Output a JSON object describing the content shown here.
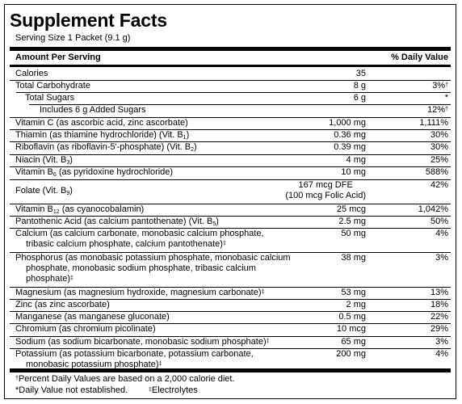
{
  "title": "Supplement Facts",
  "serving_size": "Serving Size 1 Packet (9.1 g)",
  "header": {
    "amount": "Amount Per Serving",
    "dv": "% Daily Value"
  },
  "rows": [
    {
      "name": "Calories",
      "amount": "35",
      "dv": ""
    },
    {
      "name": "Total Carbohydrate",
      "amount": "8 g",
      "dv": "3%",
      "dv_mark": "†"
    },
    {
      "name": "Total Sugars",
      "amount": "6 g",
      "dv": "*"
    },
    {
      "name": "Includes 6 g Added Sugars",
      "amount": "",
      "dv": "12%",
      "dv_mark": "†"
    },
    {
      "name": "Vitamin C (as ascorbic acid, zinc ascorbate)",
      "amount": "1,000 mg",
      "dv": "1,111%"
    },
    {
      "name": "Thiamin (as thiamine hydrochloride) (Vit. B",
      "sub": "1",
      "name_tail": ")",
      "amount": "0.36 mg",
      "dv": "30%"
    },
    {
      "name": "Riboflavin (as riboflavin-5'-phosphate) (Vit. B",
      "sub": "2",
      "name_tail": ")",
      "amount": "0.39 mg",
      "dv": "30%"
    },
    {
      "name": "Niacin (Vit. B",
      "sub": "3",
      "name_tail": ")",
      "amount": "4 mg",
      "dv": "25%"
    },
    {
      "name": "Vitamin B",
      "sub": "6",
      "name_tail": " (as pyridoxine hydrochloride)",
      "amount": "10 mg",
      "dv": "588%"
    },
    {
      "name": "Folate (Vit. B",
      "sub": "9",
      "name_tail": ")",
      "amount": "167 mcg DFE",
      "amount2": "(100 mcg Folic Acid)",
      "dv": "42%"
    },
    {
      "name": "Vitamin B",
      "sub": "12",
      "name_tail": " (as cyanocobalamin)",
      "amount": "25 mcg",
      "dv": "1,042%"
    },
    {
      "name": "Pantothenic Acid (as calcium pantothenate) (Vit. B",
      "sub": "5",
      "name_tail": ")",
      "amount": "2.5 mg",
      "dv": "50%"
    },
    {
      "name": "Calcium (as calcium carbonate, monobasic calcium phosphate,",
      "name_line2": "tribasic calcium phosphate, calcium pantothenate)",
      "mark": "‡",
      "amount": "50 mg",
      "dv": "4%"
    },
    {
      "name": "Phosphorus (as monobasic potassium phosphate, monobasic calcium",
      "name_line2": "phosphate, monobasic sodium phosphate, tribasic calcium",
      "name_line3": "phosphate)",
      "mark": "‡",
      "amount": "38 mg",
      "dv": "3%"
    },
    {
      "name": "Magnesium (as magnesium hydroxide, magnesium carbonate)",
      "mark": "‡",
      "amount": "53 mg",
      "dv": "13%"
    },
    {
      "name": "Zinc (as zinc ascorbate)",
      "amount": "2 mg",
      "dv": "18%"
    },
    {
      "name": "Manganese (as manganese gluconate)",
      "amount": "0.5 mg",
      "dv": "22%"
    },
    {
      "name": "Chromium (as chromium picolinate)",
      "amount": "10 mcg",
      "dv": "29%"
    },
    {
      "name": "Sodium (as sodium bicarbonate, monobasic sodium phosphate)",
      "mark": "‡",
      "amount": "65 mg",
      "dv": "3%"
    },
    {
      "name": "Potassium (as potassium bicarbonate, potassium carbonate,",
      "name_line2": "monobasic potassium phosphate)",
      "mark": "‡",
      "amount": "200 mg",
      "dv": "4%"
    }
  ],
  "footnotes": {
    "dv_mark": "†",
    "dv_note": "Percent Daily Values are based on a 2,000 calorie diet.",
    "star_note": "*Daily Value not established.",
    "electrolyte_mark": "‡",
    "electrolyte_note": "Electrolytes"
  }
}
